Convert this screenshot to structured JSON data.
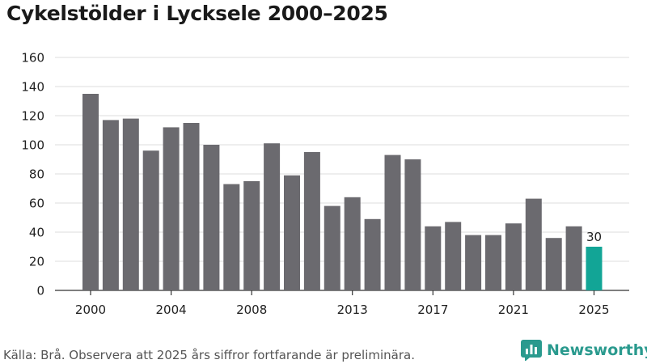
{
  "title": "Cykelstölder i Lycksele 2000–2025",
  "source": "Källa: Brå. Observera att 2025 års siffror fortfarande är preliminära.",
  "brand": {
    "name": "Newsworthy",
    "icon": "newsworthy-logo-icon"
  },
  "colors": {
    "bar": "#6b6a6f",
    "highlight": "#12a596",
    "grid": "#dcdcdc",
    "axis": "#333333"
  },
  "chart_data": {
    "type": "bar",
    "title": "Cykelstölder i Lycksele 2000–2025",
    "xlabel": "",
    "ylabel": "",
    "x": [
      2000,
      2001,
      2002,
      2003,
      2004,
      2005,
      2006,
      2007,
      2008,
      2009,
      2010,
      2011,
      2012,
      2013,
      2014,
      2015,
      2016,
      2017,
      2018,
      2019,
      2020,
      2021,
      2022,
      2023,
      2024,
      2025
    ],
    "values": [
      135,
      117,
      118,
      96,
      112,
      115,
      100,
      73,
      75,
      101,
      79,
      95,
      58,
      64,
      49,
      93,
      90,
      44,
      47,
      38,
      38,
      46,
      63,
      36,
      44,
      30
    ],
    "xticks": [
      2000,
      2004,
      2008,
      2013,
      2017,
      2021,
      2025
    ],
    "yticks": [
      0,
      20,
      40,
      60,
      80,
      100,
      120,
      140,
      160
    ],
    "ylim": [
      0,
      160
    ],
    "grid": true,
    "highlight_index": 25,
    "data_labels": [
      {
        "index": 25,
        "text": "30"
      }
    ]
  }
}
